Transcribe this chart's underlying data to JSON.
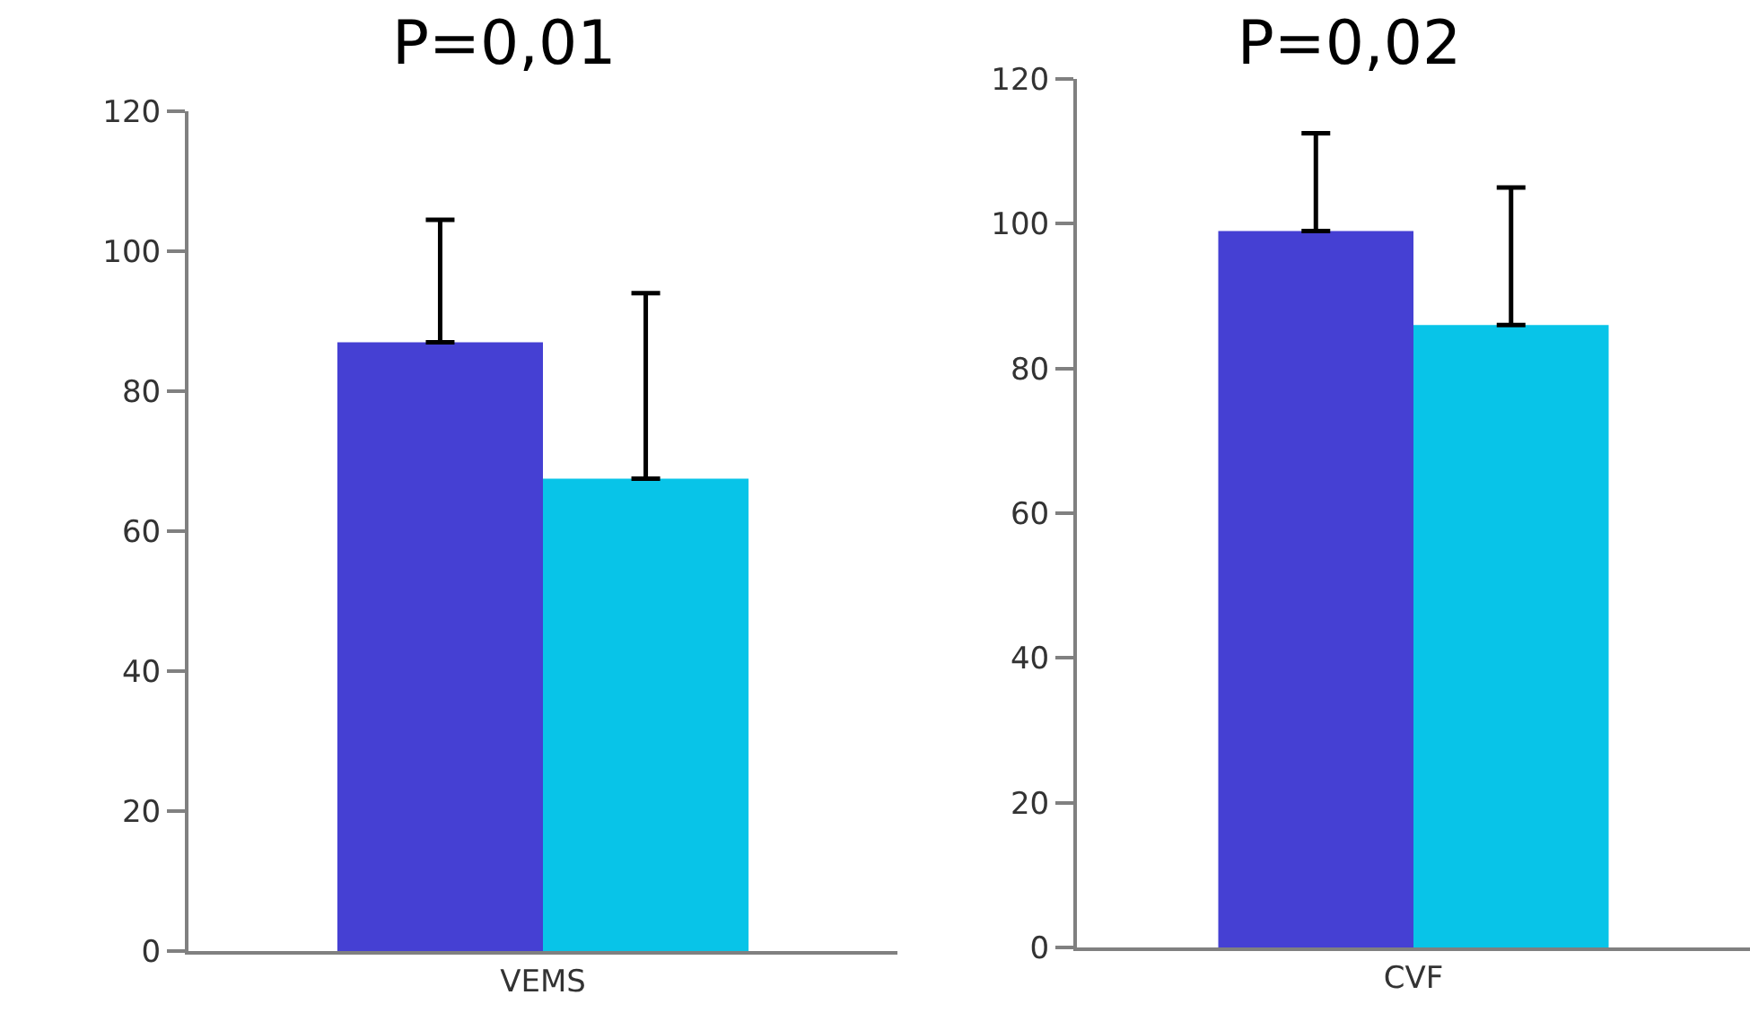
{
  "chart_data": [
    {
      "type": "bar",
      "title": "P=0,01",
      "categories": [
        "VEMS"
      ],
      "series": [
        {
          "color": "#4540d3",
          "values": [
            87
          ],
          "errors": [
            [
              87,
              104.5
            ]
          ]
        },
        {
          "color": "#08c4e8",
          "values": [
            67.5
          ],
          "errors": [
            [
              67.5,
              94
            ]
          ]
        }
      ],
      "ylim": [
        0,
        120
      ],
      "yticks": [
        0,
        20,
        40,
        60,
        80,
        100,
        120
      ],
      "grid": false,
      "legend": false
    },
    {
      "type": "bar",
      "title": "P=0,02",
      "categories": [
        "CVF"
      ],
      "series": [
        {
          "color": "#4540d3",
          "values": [
            99
          ],
          "errors": [
            [
              99,
              112.5
            ]
          ]
        },
        {
          "color": "#08c4e8",
          "values": [
            86
          ],
          "errors": [
            [
              86,
              105
            ]
          ]
        }
      ],
      "ylim": [
        0,
        120
      ],
      "yticks": [
        0,
        20,
        40,
        60,
        80,
        100,
        120
      ],
      "grid": false,
      "legend": false
    }
  ]
}
